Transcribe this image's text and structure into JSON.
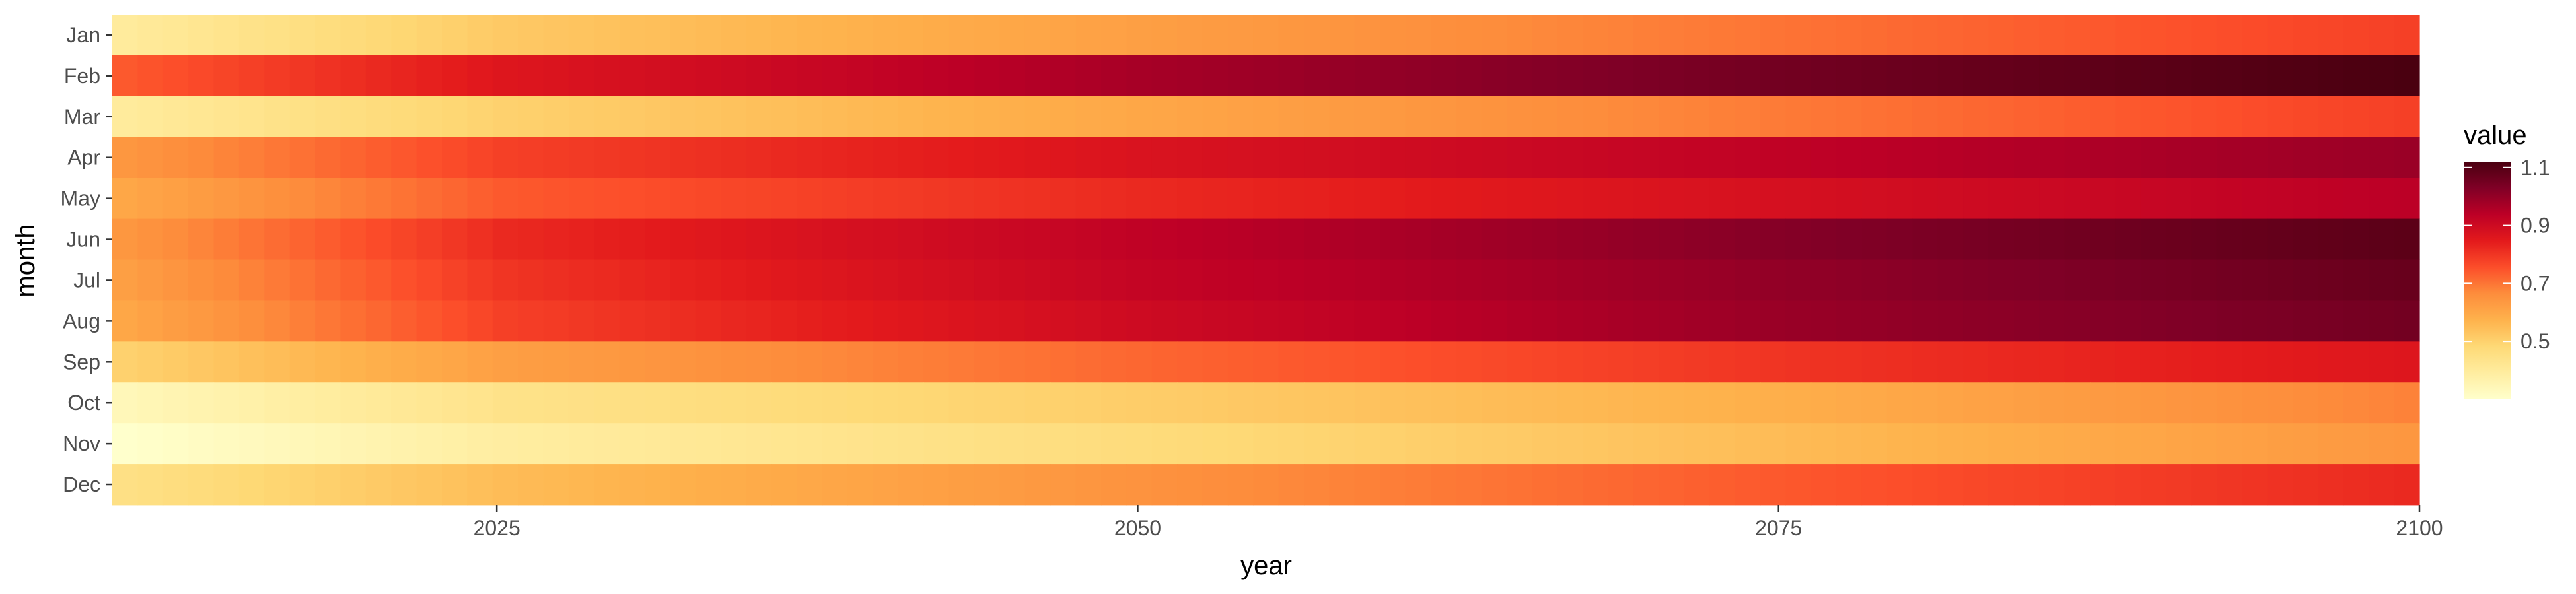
{
  "chart_data": {
    "type": "heatmap",
    "xlabel": "year",
    "ylabel": "month",
    "x_ticks": [
      2025,
      2050,
      2075,
      2100
    ],
    "xlim": [
      2010,
      2100
    ],
    "months": [
      "Jan",
      "Feb",
      "Mar",
      "Apr",
      "May",
      "Jun",
      "Jul",
      "Aug",
      "Sep",
      "Oct",
      "Nov",
      "Dec"
    ],
    "month_profiles": [
      {
        "month": "Jan",
        "values_at_years": [
          2010,
          2025,
          2050,
          2075,
          2100
        ],
        "values": [
          0.4,
          0.52,
          0.62,
          0.7,
          0.78
        ]
      },
      {
        "month": "Feb",
        "values_at_years": [
          2010,
          2025,
          2050,
          2075,
          2100
        ],
        "values": [
          0.74,
          0.86,
          0.97,
          1.05,
          1.12
        ]
      },
      {
        "month": "Mar",
        "values_at_years": [
          2010,
          2025,
          2050,
          2075,
          2100
        ],
        "values": [
          0.4,
          0.5,
          0.6,
          0.69,
          0.78
        ]
      },
      {
        "month": "Apr",
        "values_at_years": [
          2010,
          2025,
          2050,
          2075,
          2100
        ],
        "values": [
          0.64,
          0.78,
          0.87,
          0.93,
          0.99
        ]
      },
      {
        "month": "May",
        "values_at_years": [
          2010,
          2025,
          2050,
          2075,
          2100
        ],
        "values": [
          0.6,
          0.74,
          0.82,
          0.88,
          0.94
        ]
      },
      {
        "month": "Jun",
        "values_at_years": [
          2010,
          2025,
          2050,
          2075,
          2100
        ],
        "values": [
          0.64,
          0.82,
          0.93,
          1.02,
          1.09
        ]
      },
      {
        "month": "Jul",
        "values_at_years": [
          2010,
          2025,
          2050,
          2075,
          2100
        ],
        "values": [
          0.62,
          0.8,
          0.92,
          1.0,
          1.07
        ]
      },
      {
        "month": "Aug",
        "values_at_years": [
          2010,
          2025,
          2050,
          2075,
          2100
        ],
        "values": [
          0.6,
          0.78,
          0.9,
          0.99,
          1.05
        ]
      },
      {
        "month": "Sep",
        "values_at_years": [
          2010,
          2025,
          2050,
          2075,
          2100
        ],
        "values": [
          0.5,
          0.62,
          0.72,
          0.8,
          0.86
        ]
      },
      {
        "month": "Oct",
        "values_at_years": [
          2010,
          2025,
          2050,
          2075,
          2100
        ],
        "values": [
          0.34,
          0.44,
          0.51,
          0.58,
          0.68
        ]
      },
      {
        "month": "Nov",
        "values_at_years": [
          2010,
          2025,
          2050,
          2075,
          2100
        ],
        "values": [
          0.3,
          0.39,
          0.47,
          0.55,
          0.64
        ]
      },
      {
        "month": "Dec",
        "values_at_years": [
          2010,
          2025,
          2050,
          2075,
          2100
        ],
        "values": [
          0.45,
          0.55,
          0.65,
          0.74,
          0.82
        ]
      }
    ],
    "legend": {
      "title": "value",
      "labels": [
        "0.5",
        "0.7",
        "0.9",
        "1.1"
      ],
      "range": [
        0.3,
        1.12
      ],
      "placement": "right"
    },
    "colors": {
      "palette": [
        "#ffffcc",
        "#ffeda0",
        "#fed976",
        "#feb24c",
        "#fd8d3c",
        "#fc4e2a",
        "#e31a1c",
        "#bd0026",
        "#800026",
        "#4a0010"
      ]
    }
  }
}
